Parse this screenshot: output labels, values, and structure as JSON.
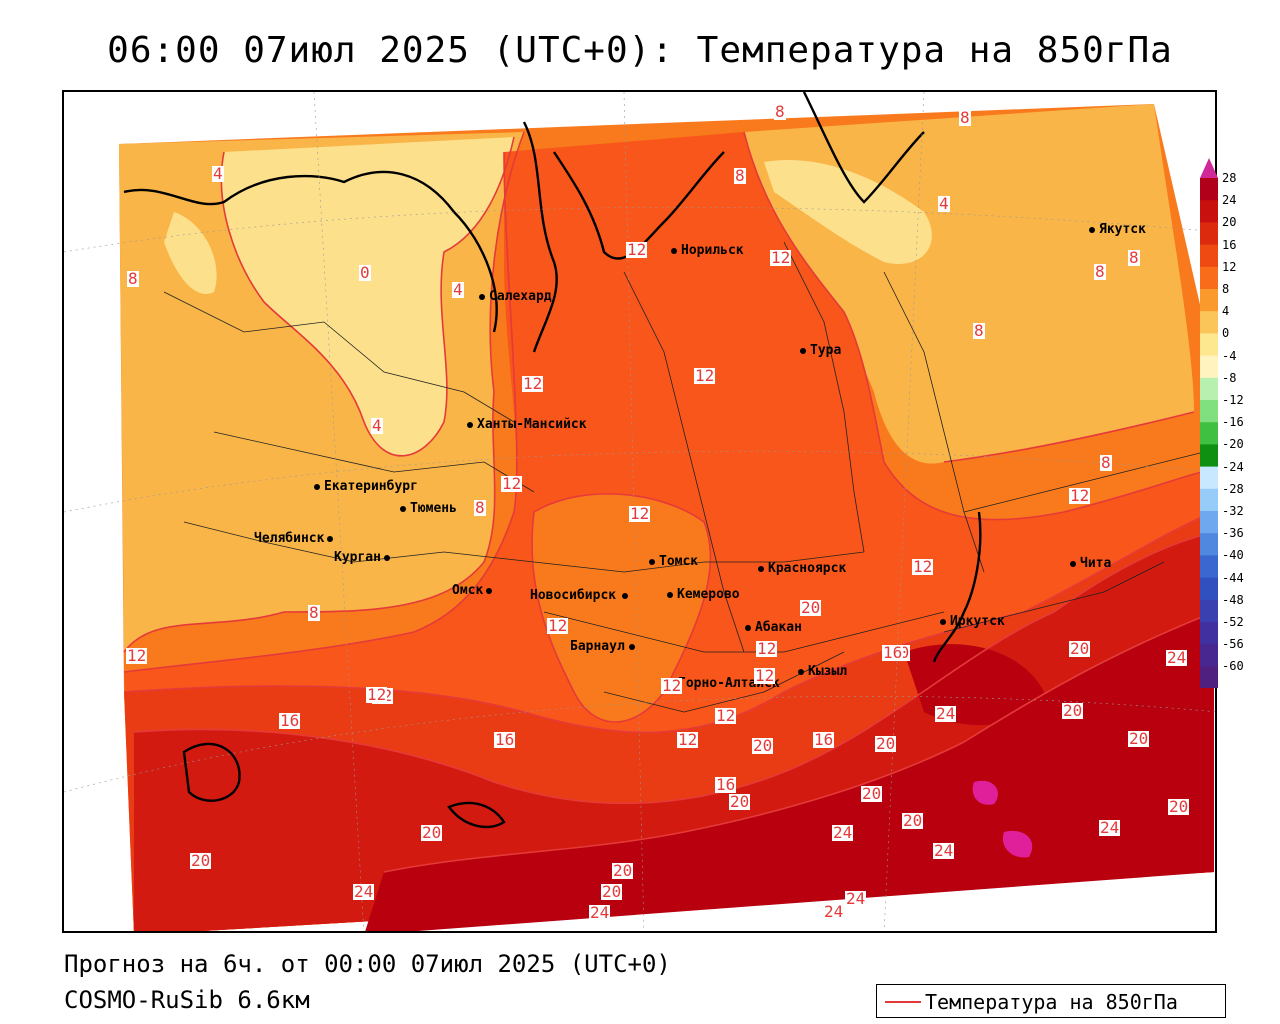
{
  "title": "06:00 07июл 2025 (UTC+0): Температура на 850гПа",
  "footer": {
    "forecast": "Прогноз на 6ч. от 00:00 07июл 2025 (UTC+0)",
    "model": "COSMO-RuSib 6.6км"
  },
  "legend": {
    "label": "Температура на 850гПа",
    "color": "#e53a3a"
  },
  "colorbar": {
    "ticks": [
      "28",
      "24",
      "20",
      "16",
      "12",
      "8",
      "4",
      "0",
      "-4",
      "-8",
      "-12",
      "-16",
      "-20",
      "-24",
      "-28",
      "-32",
      "-36",
      "-40",
      "-44",
      "-48",
      "-52",
      "-56",
      "-60"
    ],
    "colors": [
      "#b0001a",
      "#c8100f",
      "#dc2a0f",
      "#ee4a12",
      "#f86c1a",
      "#fb9a2c",
      "#fcc55a",
      "#fde890",
      "#fff4c0",
      "#b8f0b0",
      "#80e080",
      "#40c040",
      "#109010",
      "#c8e8ff",
      "#98ccf8",
      "#70a8f0",
      "#5088e0",
      "#3a68d0",
      "#3050c0",
      "#3a40b0",
      "#4030a0",
      "#482890",
      "#502080"
    ],
    "top_color": "#d0289a",
    "bottom_color": "#9a2ad0"
  },
  "cities": [
    {
      "name": "Норильск"
    },
    {
      "name": "Якутск"
    },
    {
      "name": "Салехард"
    },
    {
      "name": "Тура"
    },
    {
      "name": "Ханты-Мансийск"
    },
    {
      "name": "Екатеринбург"
    },
    {
      "name": "Тюмень"
    },
    {
      "name": "Челябинск"
    },
    {
      "name": "Курган"
    },
    {
      "name": "Томск"
    },
    {
      "name": "Красноярск"
    },
    {
      "name": "Омск"
    },
    {
      "name": "Новосибирск"
    },
    {
      "name": "Кемерово"
    },
    {
      "name": "Абакан"
    },
    {
      "name": "Иркутск"
    },
    {
      "name": "Чита"
    },
    {
      "name": "Барнаул"
    },
    {
      "name": "Горно-Алтайск"
    },
    {
      "name": "Кызыл"
    }
  ],
  "contour_labels": [
    "8",
    "8",
    "8",
    "4",
    "4",
    "0",
    "4",
    "12",
    "8",
    "12",
    "8",
    "12",
    "12",
    "4",
    "8",
    "12",
    "8",
    "12",
    "12",
    "8",
    "12",
    "12",
    "12",
    "12",
    "16",
    "12",
    "20",
    "12",
    "16",
    "20",
    "12",
    "12",
    "20",
    "20",
    "24",
    "12",
    "12",
    "16",
    "20",
    "20",
    "24",
    "20",
    "16",
    "20",
    "24",
    "16",
    "20",
    "20",
    "20",
    "24",
    "24",
    "20",
    "20",
    "20",
    "24",
    "24",
    "20",
    "24",
    "24",
    "8",
    "8"
  ],
  "colors": {
    "t4_8": "#f9b548",
    "t0_4": "#fde08c",
    "t8_12": "#f97a1c",
    "t12_16": "#f8561a",
    "t16_20": "#ea3c14",
    "t20_24": "#d21a10",
    "t24_28": "#b8000e",
    "contour": "#e53a3a",
    "hot_spot": "#e0209a"
  }
}
